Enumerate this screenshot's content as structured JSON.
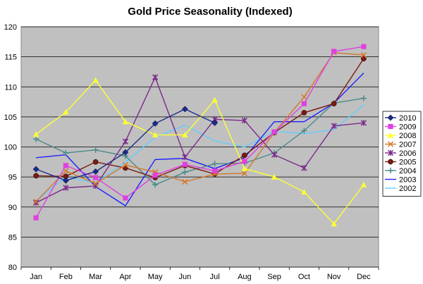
{
  "chart_data": {
    "type": "line",
    "title": "Gold Price Seasonality (Indexed)",
    "xlabel": "",
    "ylabel": "",
    "ylim": [
      80,
      120
    ],
    "yticks": [
      80,
      85,
      90,
      95,
      100,
      105,
      110,
      115,
      120
    ],
    "categories": [
      "Jan",
      "Feb",
      "Mar",
      "Apr",
      "May",
      "Jun",
      "Jul",
      "Aug",
      "Sep",
      "Oct",
      "Nov",
      "Dec"
    ],
    "grid": "horizontal",
    "legend_placement": "right",
    "plot_background": "#c0c0c0",
    "series": [
      {
        "name": "2010",
        "color": "#1a2a8c",
        "marker": "diamond",
        "values": [
          96.3,
          94.4,
          95.9,
          99.1,
          103.9,
          106.3,
          104.0,
          null,
          null,
          null,
          null,
          null
        ]
      },
      {
        "name": "2009",
        "color": "#e040e0",
        "marker": "square",
        "values": [
          88.2,
          96.9,
          94.9,
          91.5,
          95.3,
          97.1,
          96.0,
          97.6,
          102.5,
          107.2,
          115.9,
          116.7
        ]
      },
      {
        "name": "2008",
        "color": "#ffff33",
        "marker": "triangle",
        "values": [
          102.1,
          105.8,
          111.1,
          104.2,
          102.0,
          102.0,
          107.8,
          96.4,
          95.0,
          92.5,
          87.2,
          93.7
        ]
      },
      {
        "name": "2007",
        "color": "#d2782a",
        "marker": "x",
        "values": [
          90.9,
          96.0,
          93.9,
          97.0,
          95.8,
          94.2,
          95.5,
          95.6,
          102.4,
          108.3,
          115.7,
          115.3
        ]
      },
      {
        "name": "2006",
        "color": "#7a2a8c",
        "marker": "star",
        "values": [
          90.7,
          93.2,
          93.5,
          100.9,
          111.6,
          98.3,
          104.6,
          104.4,
          98.7,
          96.5,
          103.5,
          104.0
        ]
      },
      {
        "name": "2005",
        "color": "#7a1a10",
        "marker": "circle",
        "values": [
          95.2,
          95.1,
          97.5,
          96.5,
          94.9,
          96.9,
          95.5,
          98.6,
          102.4,
          105.7,
          107.2,
          114.7
        ]
      },
      {
        "name": "2004",
        "color": "#4a8a8a",
        "marker": "plus",
        "values": [
          101.3,
          99.0,
          99.5,
          98.5,
          93.7,
          95.8,
          97.2,
          97.3,
          99.0,
          102.7,
          107.3,
          108.1
        ]
      },
      {
        "name": "2003",
        "color": "#2020ff",
        "marker": "none",
        "values": [
          98.2,
          98.7,
          93.4,
          90.2,
          97.9,
          98.1,
          96.4,
          98.2,
          104.2,
          104.2,
          107.3,
          112.3
        ]
      },
      {
        "name": "2002",
        "color": "#66ccff",
        "marker": "none",
        "values": [
          91.0,
          95.0,
          94.0,
          97.5,
          101.6,
          103.6,
          101.0,
          100.0,
          102.6,
          102.2,
          102.9,
          107.0
        ]
      }
    ]
  }
}
